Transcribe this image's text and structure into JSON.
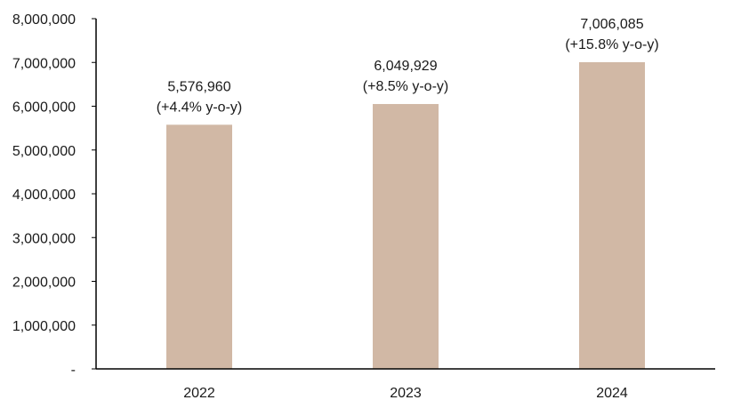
{
  "chart_data": {
    "type": "bar",
    "title": "",
    "xlabel": "",
    "ylabel": "",
    "categories": [
      "2022",
      "2023",
      "2024"
    ],
    "values": [
      5576960,
      6049929,
      7006085
    ],
    "value_labels": [
      "5,576,960",
      "6,049,929",
      "7,006,085"
    ],
    "change_labels": [
      "(+4.4% y-o-y)",
      "(+8.5% y-o-y)",
      "(+15.8% y-o-y)"
    ],
    "ylim": [
      0,
      8000000
    ],
    "y_ticks": [
      0,
      1000000,
      2000000,
      3000000,
      4000000,
      5000000,
      6000000,
      7000000,
      8000000
    ],
    "y_tick_labels": [
      "-",
      "1,000,000",
      "2,000,000",
      "3,000,000",
      "4,000,000",
      "5,000,000",
      "6,000,000",
      "7,000,000",
      "8,000,000"
    ],
    "grid": false,
    "legend": "none",
    "bar_color": "#d1b8a5"
  }
}
